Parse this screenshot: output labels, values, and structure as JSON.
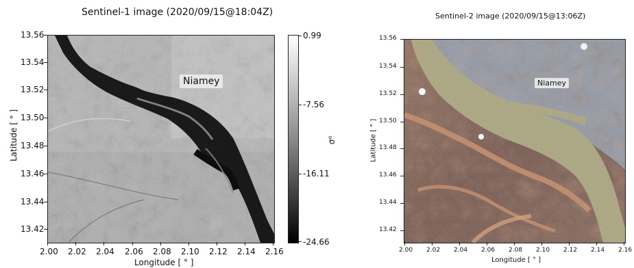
{
  "left": {
    "title": "Sentinel-1 image (2020/09/15@18:04Z)",
    "xlabel": "Longitude [$^\\circ$]",
    "xlabel_display": "Longitude [ ° ]",
    "ylabel_display": "Latitude [ ° ]",
    "place_label": "Niamey",
    "xticks": [
      "2.00",
      "2.02",
      "2.04",
      "2.06",
      "2.08",
      "2.10",
      "2.12",
      "2.14",
      "2.16"
    ],
    "yticks": [
      "13.56",
      "13.54",
      "13.52",
      "13.50",
      "13.48",
      "13.46",
      "13.44",
      "13.42"
    ],
    "colorbar": {
      "label": "σ⁰",
      "ticks": [
        "0.99",
        "-7.56",
        "-16.11",
        "-24.66"
      ]
    }
  },
  "right": {
    "title": "Sentinel-2 image (2020/09/15@13:06Z)",
    "xlabel_display": "Longitude [ ° ]",
    "ylabel_display": "Latitude [ ° ]",
    "place_label": "Niamey",
    "xticks": [
      "2.00",
      "2.02",
      "2.04",
      "2.06",
      "2.08",
      "2.10",
      "2.12",
      "2.14",
      "2.16"
    ],
    "yticks": [
      "13.56",
      "13.54",
      "13.52",
      "13.50",
      "13.48",
      "13.46",
      "13.44",
      "13.42"
    ]
  },
  "colors": {
    "sar_light": "#c9c9c9",
    "sar_dark": "#8c8c8c",
    "river_dark": "#121212",
    "optical_city": "#8f97a6",
    "optical_river": "#a9a47a",
    "optical_soil": "#7e5a48",
    "optical_orange": "#c98a60"
  }
}
